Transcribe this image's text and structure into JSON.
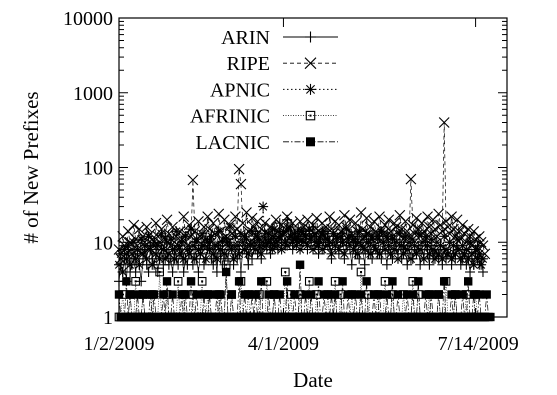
{
  "chart_data": {
    "type": "line",
    "title": "",
    "xlabel": "Date",
    "ylabel": "# of New Prefixes",
    "yscale": "log",
    "ylim": [
      1,
      10000
    ],
    "xlim": [
      "2009-01-02",
      "2009-07-31"
    ],
    "x_ticks": [
      "1/2/2009",
      "4/1/2009",
      "7/14/2009"
    ],
    "y_ticks": [
      "1",
      "10",
      "100",
      "1000",
      "10000"
    ],
    "grid": false,
    "legend_position": "top-right",
    "note": "Daily series; values are approximate readings off the log axis, one point per day from 2009-01-02 to 2009-07-28.",
    "series": [
      {
        "name": "ARIN",
        "marker": "plus",
        "dash": "solid",
        "start": "2009-01-02",
        "values": [
          3,
          5,
          4,
          6,
          3,
          8,
          4,
          5,
          6,
          4,
          7,
          5,
          3,
          6,
          8,
          5,
          4,
          9,
          6,
          5,
          7,
          4,
          6,
          8,
          5,
          12,
          7,
          5,
          6,
          4,
          8,
          6,
          5,
          9,
          7,
          4,
          6,
          5,
          8,
          7,
          5,
          10,
          6,
          4,
          7,
          9,
          5,
          6,
          8,
          11,
          6,
          5,
          7,
          4,
          9,
          6,
          8,
          5,
          7,
          6,
          10,
          8,
          5,
          7,
          6,
          9,
          4,
          8,
          12,
          7,
          5,
          9,
          6,
          8,
          14,
          7,
          10,
          6,
          9,
          13,
          8,
          11,
          7,
          15,
          9,
          12,
          8,
          18,
          10,
          14,
          9,
          20,
          11,
          16,
          8,
          13,
          10,
          15,
          12,
          9,
          14,
          11,
          8,
          13,
          10,
          16,
          9,
          12,
          7,
          11,
          14,
          8,
          10,
          13,
          9,
          6,
          12,
          8,
          11,
          7,
          10,
          13,
          6,
          9,
          11,
          8,
          5,
          10,
          7,
          12,
          6,
          9,
          8,
          5,
          11,
          7,
          10,
          6,
          9,
          8,
          7,
          12,
          6,
          10,
          8,
          5,
          9,
          7,
          6,
          11,
          8,
          7,
          10,
          6,
          9,
          8,
          5,
          7,
          10,
          6,
          8,
          7,
          9,
          5,
          8,
          6,
          10,
          7,
          5,
          9,
          6,
          8,
          7,
          6,
          9,
          5,
          8,
          6,
          7,
          10,
          5,
          7,
          6,
          9,
          8,
          5,
          6,
          7,
          5,
          6,
          4,
          6,
          5,
          7,
          9,
          5,
          6,
          4
        ]
      },
      {
        "name": "RIPE",
        "marker": "x",
        "dash": "dashed",
        "start": "2009-01-02",
        "values": [
          8,
          6,
          12,
          9,
          7,
          14,
          10,
          8,
          17,
          11,
          9,
          15,
          7,
          12,
          10,
          16,
          8,
          13,
          11,
          9,
          18,
          12,
          10,
          15,
          8,
          11,
          20,
          13,
          9,
          16,
          10,
          12,
          8,
          14,
          11,
          22,
          13,
          9,
          17,
          12,
          68,
          14,
          10,
          19,
          12,
          9,
          16,
          11,
          22,
          15,
          10,
          18,
          13,
          9,
          24,
          14,
          11,
          20,
          12,
          10,
          17,
          13,
          9,
          22,
          15,
          95,
          60,
          18,
          12,
          25,
          14,
          10,
          21,
          16,
          12,
          19,
          11,
          15,
          9,
          18,
          13,
          10,
          16,
          12,
          9,
          20,
          14,
          11,
          17,
          13,
          10,
          22,
          15,
          12,
          18,
          11,
          14,
          10,
          19,
          13,
          16,
          12,
          20,
          15,
          11,
          17,
          13,
          21,
          14,
          10,
          18,
          12,
          16,
          11,
          22,
          15,
          13,
          19,
          12,
          17,
          14,
          10,
          23,
          16,
          12,
          20,
          13,
          11,
          18,
          14,
          10,
          25,
          15,
          12,
          21,
          13,
          16,
          11,
          19,
          14,
          12,
          22,
          15,
          13,
          17,
          11,
          20,
          14,
          12,
          18,
          16,
          13,
          23,
          15,
          11,
          19,
          14,
          12,
          70,
          17,
          13,
          21,
          15,
          12,
          18,
          14,
          11,
          22,
          16,
          13,
          20,
          15,
          12,
          24,
          17,
          14,
          400,
          19,
          16,
          13,
          22,
          15,
          12,
          20,
          14,
          11,
          17,
          13,
          10,
          15,
          12,
          9,
          14,
          11,
          8,
          12,
          10,
          9,
          7
        ]
      },
      {
        "name": "APNIC",
        "marker": "star",
        "dash": "dotted",
        "start": "2009-01-02",
        "values": [
          5,
          7,
          4,
          8,
          6,
          9,
          5,
          7,
          10,
          6,
          8,
          5,
          11,
          7,
          9,
          6,
          12,
          8,
          5,
          10,
          7,
          9,
          6,
          13,
          8,
          6,
          10,
          7,
          11,
          8,
          6,
          14,
          9,
          7,
          10,
          6,
          12,
          8,
          7,
          15,
          9,
          6,
          11,
          8,
          7,
          13,
          9,
          6,
          10,
          8,
          12,
          7,
          9,
          6,
          14,
          8,
          10,
          7,
          11,
          9,
          16,
          8,
          6,
          12,
          9,
          7,
          13,
          10,
          8,
          11,
          7,
          9,
          14,
          10,
          8,
          12,
          9,
          7,
          30,
          11,
          9,
          13,
          10,
          8,
          15,
          11,
          9,
          12,
          8,
          14,
          10,
          9,
          16,
          12,
          10,
          13,
          9,
          11,
          8,
          14,
          10,
          12,
          9,
          15,
          11,
          8,
          13,
          10,
          9,
          12,
          8,
          14,
          11,
          9,
          10,
          7,
          13,
          9,
          11,
          8,
          12,
          10,
          7,
          15,
          11,
          9,
          12,
          8,
          10,
          7,
          14,
          9,
          11,
          8,
          13,
          10,
          7,
          12,
          9,
          8,
          11,
          7,
          14,
          10,
          8,
          12,
          9,
          7,
          11,
          8,
          10,
          6,
          13,
          9,
          7,
          12,
          8,
          10,
          6,
          11,
          9,
          7,
          13,
          8,
          10,
          6,
          12,
          9,
          7,
          11,
          8,
          6,
          10,
          7,
          9,
          6,
          12,
          8,
          7,
          10,
          6,
          9,
          7,
          11,
          8,
          6,
          9,
          7,
          8,
          6,
          10,
          7,
          5,
          8,
          6,
          7,
          5,
          6
        ]
      },
      {
        "name": "AFRINIC",
        "marker": "square-open",
        "dash": "fine-dotted",
        "start": "2009-01-02",
        "values": [
          1,
          1,
          2,
          1,
          1,
          1,
          2,
          1,
          1,
          3,
          1,
          1,
          1,
          2,
          1,
          1,
          1,
          1,
          2,
          1,
          1,
          1,
          4,
          1,
          1,
          1,
          2,
          1,
          1,
          1,
          1,
          1,
          3,
          1,
          1,
          2,
          1,
          1,
          1,
          1,
          2,
          1,
          1,
          1,
          1,
          3,
          1,
          1,
          2,
          1,
          1,
          1,
          1,
          1,
          2,
          1,
          1,
          1,
          5,
          1,
          1,
          2,
          1,
          1,
          1,
          1,
          3,
          1,
          1,
          1,
          2,
          1,
          1,
          1,
          1,
          1,
          2,
          1,
          1,
          1,
          3,
          1,
          1,
          1,
          2,
          1,
          1,
          1,
          1,
          1,
          4,
          1,
          1,
          2,
          1,
          1,
          1,
          1,
          2,
          1,
          1,
          1,
          1,
          3,
          1,
          1,
          1,
          2,
          1,
          1,
          1,
          1,
          1,
          2,
          1,
          1,
          1,
          3,
          1,
          1,
          2,
          1,
          1,
          1,
          1,
          1,
          2,
          1,
          1,
          1,
          1,
          4,
          1,
          1,
          1,
          2,
          1,
          1,
          1,
          1,
          2,
          1,
          1,
          1,
          3,
          1,
          1,
          1,
          2,
          1,
          1,
          1,
          1,
          1,
          2,
          1,
          1,
          1,
          1,
          3,
          1,
          1,
          2,
          1,
          1,
          1,
          1,
          1,
          2,
          1,
          1,
          1,
          1,
          2,
          1,
          1,
          1,
          3,
          1,
          1,
          1,
          1,
          2,
          1,
          1,
          1,
          1,
          1,
          2,
          1,
          1,
          1,
          1,
          2,
          1,
          1,
          1,
          1,
          1
        ]
      },
      {
        "name": "LACNIC",
        "marker": "square-filled",
        "dash": "dash-dot",
        "start": "2009-01-02",
        "values": [
          2,
          1,
          1,
          1,
          3,
          1,
          2,
          1,
          1,
          1,
          2,
          1,
          1,
          2,
          1,
          1,
          1,
          2,
          1,
          2,
          1,
          1,
          1,
          1,
          2,
          1,
          3,
          1,
          1,
          2,
          1,
          1,
          1,
          1,
          2,
          1,
          2,
          1,
          1,
          3,
          1,
          1,
          2,
          1,
          1,
          1,
          2,
          1,
          1,
          2,
          1,
          1,
          1,
          2,
          1,
          2,
          1,
          1,
          4,
          1,
          1,
          2,
          1,
          1,
          1,
          3,
          1,
          1,
          2,
          1,
          1,
          1,
          2,
          1,
          2,
          1,
          1,
          3,
          1,
          1,
          1,
          2,
          1,
          1,
          2,
          1,
          1,
          2,
          1,
          1,
          1,
          3,
          1,
          1,
          1,
          2,
          1,
          1,
          5,
          1,
          1,
          2,
          1,
          1,
          2,
          1,
          1,
          1,
          3,
          1,
          1,
          2,
          1,
          1,
          1,
          2,
          1,
          2,
          1,
          1,
          1,
          3,
          1,
          1,
          2,
          1,
          1,
          1,
          2,
          1,
          1,
          2,
          1,
          1,
          3,
          1,
          1,
          1,
          2,
          1,
          1,
          2,
          1,
          1,
          1,
          2,
          1,
          1,
          3,
          1,
          1,
          2,
          1,
          1,
          1,
          1,
          2,
          1,
          1,
          2,
          1,
          1,
          3,
          1,
          1,
          1,
          2,
          1,
          1,
          2,
          1,
          1,
          1,
          2,
          1,
          1,
          3,
          1,
          1,
          1,
          2,
          1,
          2,
          1,
          1,
          1,
          2,
          1,
          1,
          3,
          1,
          1,
          2,
          1,
          1,
          2,
          1,
          1,
          1,
          2,
          1,
          1
        ]
      }
    ]
  }
}
